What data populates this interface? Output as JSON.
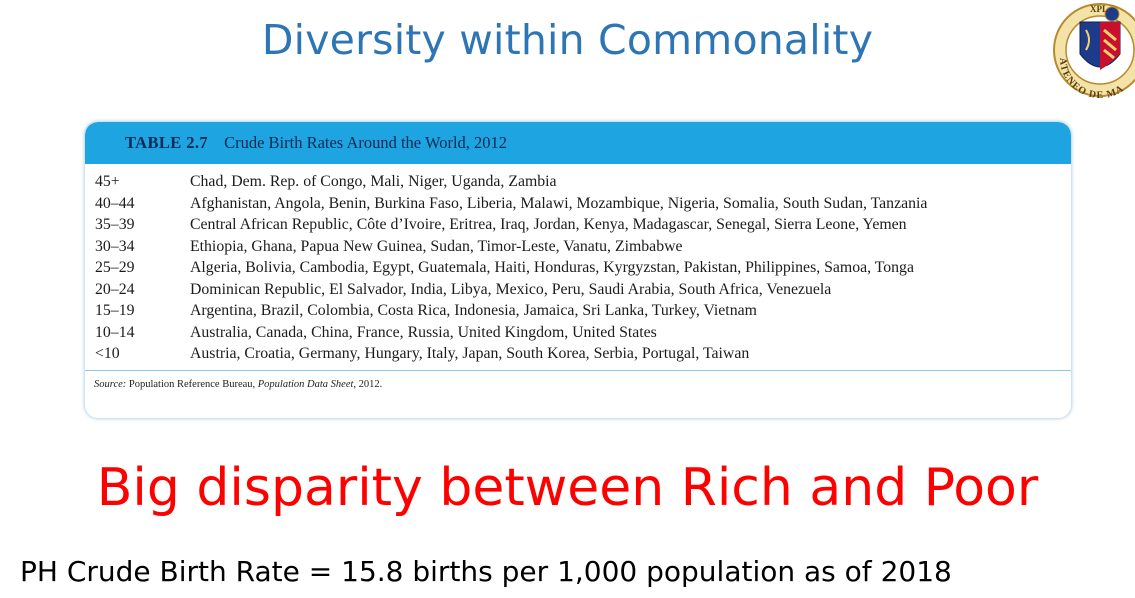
{
  "slide": {
    "title": "Diversity within Commonality",
    "headline": "Big disparity between Rich and Poor",
    "footer": "PH Crude Birth Rate = 15.8 births per 1,000 population as of 2018"
  },
  "seal": {
    "ring_text": "ATENEO DE MA",
    "top_text": "XPL"
  },
  "table": {
    "number": "TABLE 2.7",
    "caption": "Crude Birth Rates Around the World, 2012",
    "rows": [
      {
        "rate": "45+",
        "countries": "Chad, Dem. Rep. of Congo, Mali, Niger, Uganda, Zambia"
      },
      {
        "rate": "40–44",
        "countries": "Afghanistan, Angola, Benin, Burkina Faso, Liberia, Malawi, Mozambique, Nigeria, Somalia, South Sudan, Tanzania"
      },
      {
        "rate": "35–39",
        "countries": "Central African Republic, Côte d’Ivoire, Eritrea, Iraq, Jordan, Kenya, Madagascar, Senegal, Sierra Leone, Yemen"
      },
      {
        "rate": "30–34",
        "countries": "Ethiopia, Ghana, Papua New Guinea, Sudan, Timor-Leste, Vanatu, Zimbabwe"
      },
      {
        "rate": "25–29",
        "countries": "Algeria, Bolivia, Cambodia, Egypt, Guatemala, Haiti, Honduras, Kyrgyzstan, Pakistan, Philippines, Samoa, Tonga"
      },
      {
        "rate": "20–24",
        "countries": "Dominican Republic, El Salvador, India, Libya, Mexico, Peru, Saudi Arabia, South Africa, Venezuela"
      },
      {
        "rate": "15–19",
        "countries": "Argentina, Brazil, Colombia, Costa Rica, Indonesia, Jamaica, Sri Lanka, Turkey, Vietnam"
      },
      {
        "rate": "10–14",
        "countries": "Australia, Canada, China, France, Russia, United Kingdom, United States"
      },
      {
        "rate": "<10",
        "countries": "Austria, Croatia, Germany, Hungary, Italy, Japan, South Korea, Serbia, Portugal, Taiwan"
      }
    ],
    "source": {
      "label": "Source:",
      "org": "Population Reference Bureau,",
      "title": "Population Data Sheet",
      "year": ", 2012."
    }
  },
  "colors": {
    "title": "#2e75b6",
    "table_header": "#1ea4e0",
    "headline": "#ff0000"
  }
}
